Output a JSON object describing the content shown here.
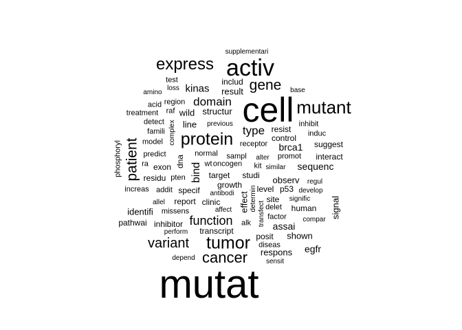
{
  "word_cloud": {
    "text_color": "#000000",
    "background": "#ffffff",
    "words": [
      "mutat",
      "cell",
      "activ",
      "express",
      "mutant",
      "gene",
      "protein",
      "patient",
      "tumor",
      "cancer",
      "variant",
      "function",
      "domain",
      "kinas",
      "type",
      "bind",
      "sequenc",
      "brca1",
      "result",
      "includ",
      "test",
      "supplementari",
      "loss",
      "amino",
      "region",
      "acid",
      "base",
      "treatment",
      "raf",
      "wild",
      "structur",
      "detect",
      "famili",
      "complex",
      "line",
      "previous",
      "inhibit",
      "resist",
      "induc",
      "control",
      "model",
      "phosphoryl",
      "predict",
      "dna",
      "normal",
      "receptor",
      "suggest",
      "interact",
      "ra",
      "exon",
      "wt",
      "oncogen",
      "sampl",
      "alter",
      "promot",
      "kit",
      "similar",
      "residu",
      "pten",
      "target",
      "studi",
      "observ",
      "regul",
      "increas",
      "addit",
      "specif",
      "growth",
      "level",
      "p53",
      "develop",
      "antibodi",
      "effect",
      "determin",
      "site",
      "signific",
      "allel",
      "report",
      "clinic",
      "identifi",
      "human",
      "signal",
      "missens",
      "affect",
      "delet",
      "factor",
      "pathwai",
      "inhibitor",
      "compar",
      "transfect",
      "assai",
      "perform",
      "transcript",
      "alk",
      "shown",
      "posit",
      "diseas",
      "egfr",
      "depend",
      "respons",
      "sensit"
    ]
  }
}
